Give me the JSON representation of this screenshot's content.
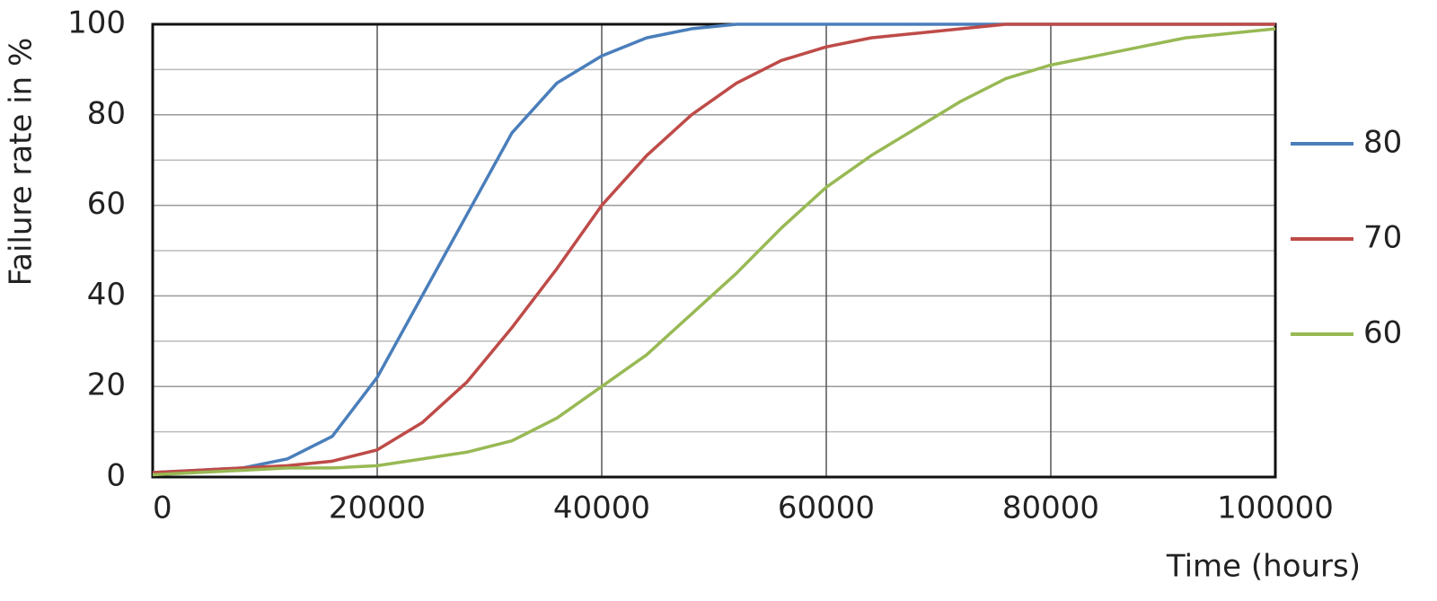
{
  "chart_data": {
    "type": "line",
    "x_label": "Time (hours)",
    "y_label": "Failure rate in %",
    "x": [
      0,
      4000,
      8000,
      12000,
      16000,
      20000,
      24000,
      28000,
      32000,
      36000,
      40000,
      44000,
      48000,
      52000,
      56000,
      60000,
      64000,
      68000,
      72000,
      76000,
      80000,
      84000,
      88000,
      92000,
      96000,
      100000
    ],
    "series": [
      {
        "name": "80",
        "color": "#4a7ebb",
        "values": [
          1,
          1.5,
          2,
          4,
          9,
          22,
          40,
          58,
          76,
          87,
          93,
          97,
          99,
          100,
          100,
          100,
          100,
          100,
          100,
          100,
          100,
          100,
          100,
          100,
          100,
          100
        ]
      },
      {
        "name": "70",
        "color": "#be4b48",
        "values": [
          1,
          1.5,
          2,
          2.5,
          3.5,
          6,
          12,
          21,
          33,
          46,
          60,
          71,
          80,
          87,
          92,
          95,
          97,
          98,
          99,
          100,
          100,
          100,
          100,
          100,
          100,
          100
        ]
      },
      {
        "name": "60",
        "color": "#98b954",
        "values": [
          0.5,
          1,
          1.5,
          2,
          2,
          2.5,
          4,
          5.5,
          8,
          13,
          20,
          27,
          36,
          45,
          55,
          64,
          71,
          77,
          83,
          88,
          91,
          93,
          95,
          97,
          98,
          99
        ]
      }
    ],
    "xlim": [
      0,
      100000
    ],
    "xticks": [
      0,
      20000,
      40000,
      60000,
      80000,
      100000
    ],
    "ylim": [
      0,
      100
    ],
    "yticks": [
      0,
      20,
      40,
      60,
      80,
      100
    ],
    "minor_yticks": [
      10,
      30,
      50,
      70,
      90
    ],
    "grid": true,
    "legend": "right"
  }
}
